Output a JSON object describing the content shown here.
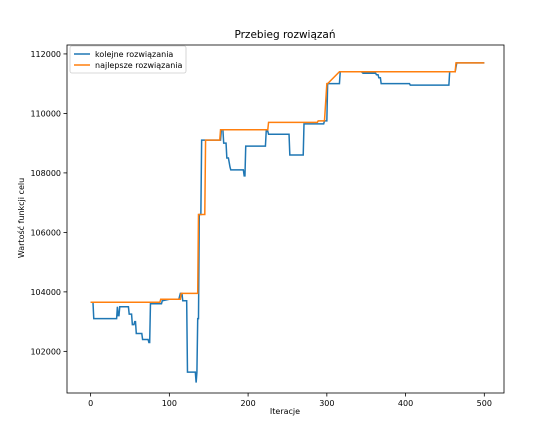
{
  "chart_data": {
    "type": "line",
    "title": "Przebieg rozwiązań",
    "xlabel": "Iteracje",
    "ylabel": "Wartość funkcji celu",
    "xlim": [
      -30,
      525
    ],
    "ylim": [
      100600,
      112300
    ],
    "xticks": [
      0,
      100,
      200,
      300,
      400,
      500
    ],
    "xtick_labels": [
      "0",
      "100",
      "200",
      "300",
      "400",
      "500"
    ],
    "yticks": [
      102000,
      104000,
      106000,
      108000,
      110000,
      112000
    ],
    "ytick_labels": [
      "102000",
      "104000",
      "106000",
      "108000",
      "110000",
      "112000"
    ],
    "grid": false,
    "legend_position": "upper-left",
    "series": [
      {
        "name": "kolejne rozwiązania",
        "color": "#1f77b4",
        "x": [
          0,
          3,
          4,
          14,
          15,
          33,
          34,
          35,
          36,
          37,
          48,
          49,
          52,
          53,
          55,
          56,
          57,
          58,
          60,
          61,
          65,
          66,
          72,
          73,
          74,
          75,
          76,
          78,
          90,
          91,
          100,
          112,
          114,
          116,
          117,
          122,
          123,
          132,
          133,
          134,
          135,
          136,
          137,
          138,
          140,
          141,
          145,
          155,
          165,
          166,
          168,
          169,
          172,
          173,
          175,
          177,
          178,
          183,
          194,
          195,
          196,
          197,
          200,
          222,
          223,
          225,
          226,
          227,
          228,
          252,
          253,
          265,
          266,
          270,
          271,
          275,
          288,
          289,
          296,
          297,
          300,
          301,
          316,
          317,
          343,
          344,
          346,
          362,
          363,
          365,
          366,
          367,
          368,
          369,
          370,
          371,
          405,
          406,
          408,
          409,
          455,
          456,
          462,
          463,
          465,
          466,
          500
        ],
        "y": [
          103650,
          103650,
          103100,
          103100,
          103100,
          103100,
          103500,
          103200,
          103200,
          103500,
          103500,
          103250,
          103250,
          102900,
          102900,
          103000,
          103000,
          102600,
          102600,
          102600,
          102600,
          102400,
          102400,
          102400,
          102300,
          102300,
          103600,
          103600,
          103600,
          103700,
          103750,
          103750,
          103950,
          103950,
          103700,
          103700,
          101300,
          101300,
          101300,
          100950,
          101300,
          103100,
          103100,
          106600,
          106600,
          109100,
          109100,
          109100,
          109100,
          109450,
          109450,
          109000,
          109000,
          108500,
          108500,
          108200,
          108100,
          108100,
          108100,
          107900,
          107900,
          108900,
          108900,
          108900,
          109400,
          109400,
          109300,
          109300,
          109300,
          109300,
          108600,
          108600,
          108600,
          108600,
          109650,
          109650,
          109650,
          109650,
          109650,
          109750,
          109750,
          111000,
          111000,
          111400,
          111400,
          111400,
          111350,
          111350,
          111300,
          111300,
          111200,
          111200,
          111200,
          111000,
          111000,
          111000,
          111000,
          110950,
          110950,
          110950,
          110950,
          111400,
          111400,
          111400,
          111700,
          111700,
          111700
        ]
      },
      {
        "name": "najlepsze rozwiązania",
        "color": "#ff7f0e",
        "x": [
          0,
          88,
          89,
          114,
          115,
          136,
          137,
          140,
          141,
          145,
          146,
          164,
          165,
          168,
          169,
          225,
          226,
          227,
          228,
          288,
          289,
          297,
          300,
          301,
          316,
          317,
          344,
          463,
          464,
          466,
          500
        ],
        "y": [
          103650,
          103650,
          103750,
          103750,
          103950,
          103950,
          106600,
          106600,
          106600,
          106600,
          109100,
          109100,
          109450,
          109450,
          109450,
          109450,
          109700,
          109700,
          109700,
          109700,
          109750,
          109750,
          111000,
          111000,
          111400,
          111400,
          111400,
          111400,
          111700,
          111700,
          111700
        ]
      }
    ]
  }
}
